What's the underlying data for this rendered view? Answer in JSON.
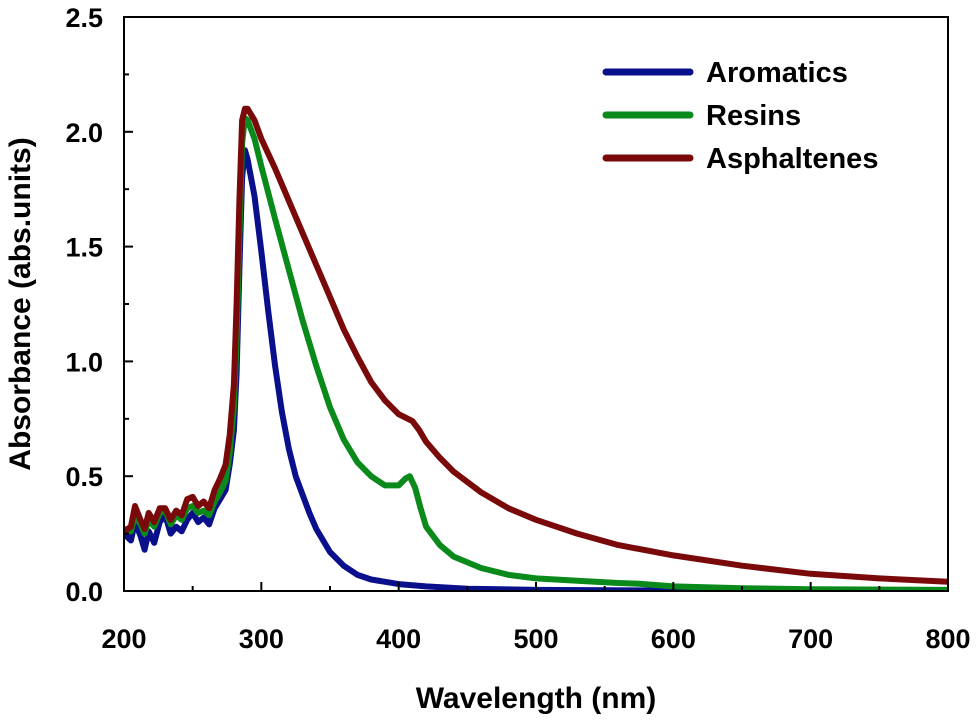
{
  "chart_data": {
    "type": "line",
    "title": "",
    "xlabel": "Wavelength (nm)",
    "ylabel": "Absorbance (abs.units)",
    "xlim": [
      200,
      800
    ],
    "ylim": [
      0.0,
      2.5
    ],
    "xticks": [
      "200",
      "300",
      "400",
      "500",
      "600",
      "700",
      "800"
    ],
    "yticks": [
      "0.0",
      "0.5",
      "1.0",
      "1.5",
      "2.0",
      "2.5"
    ],
    "grid": false,
    "legend_position": "top-right",
    "series": [
      {
        "name": "Aromatics",
        "color": "#0a108c",
        "points": [
          [
            200,
            0.25
          ],
          [
            205,
            0.22
          ],
          [
            208,
            0.3
          ],
          [
            212,
            0.24
          ],
          [
            215,
            0.18
          ],
          [
            218,
            0.26
          ],
          [
            222,
            0.21
          ],
          [
            226,
            0.3
          ],
          [
            230,
            0.33
          ],
          [
            234,
            0.25
          ],
          [
            238,
            0.28
          ],
          [
            242,
            0.26
          ],
          [
            246,
            0.31
          ],
          [
            250,
            0.34
          ],
          [
            254,
            0.3
          ],
          [
            258,
            0.32
          ],
          [
            262,
            0.29
          ],
          [
            266,
            0.36
          ],
          [
            270,
            0.4
          ],
          [
            274,
            0.44
          ],
          [
            277,
            0.55
          ],
          [
            280,
            0.7
          ],
          [
            282,
            0.95
          ],
          [
            284,
            1.4
          ],
          [
            286,
            1.8
          ],
          [
            288,
            1.92
          ],
          [
            290,
            1.88
          ],
          [
            295,
            1.72
          ],
          [
            300,
            1.48
          ],
          [
            305,
            1.22
          ],
          [
            310,
            0.98
          ],
          [
            315,
            0.78
          ],
          [
            320,
            0.62
          ],
          [
            325,
            0.5
          ],
          [
            330,
            0.42
          ],
          [
            335,
            0.34
          ],
          [
            340,
            0.27
          ],
          [
            350,
            0.17
          ],
          [
            360,
            0.11
          ],
          [
            370,
            0.07
          ],
          [
            380,
            0.05
          ],
          [
            400,
            0.03
          ],
          [
            420,
            0.02
          ],
          [
            450,
            0.01
          ],
          [
            500,
            0.005
          ],
          [
            600,
            0.002
          ],
          [
            700,
            0.001
          ],
          [
            800,
            0.001
          ]
        ]
      },
      {
        "name": "Resins",
        "color": "#0a8a1a",
        "points": [
          [
            200,
            0.27
          ],
          [
            205,
            0.26
          ],
          [
            208,
            0.33
          ],
          [
            212,
            0.29
          ],
          [
            215,
            0.25
          ],
          [
            218,
            0.31
          ],
          [
            222,
            0.28
          ],
          [
            226,
            0.34
          ],
          [
            230,
            0.35
          ],
          [
            234,
            0.29
          ],
          [
            238,
            0.33
          ],
          [
            242,
            0.31
          ],
          [
            246,
            0.36
          ],
          [
            250,
            0.37
          ],
          [
            254,
            0.34
          ],
          [
            258,
            0.35
          ],
          [
            262,
            0.33
          ],
          [
            266,
            0.39
          ],
          [
            270,
            0.43
          ],
          [
            274,
            0.48
          ],
          [
            277,
            0.6
          ],
          [
            280,
            0.8
          ],
          [
            282,
            1.1
          ],
          [
            284,
            1.55
          ],
          [
            286,
            1.95
          ],
          [
            288,
            2.06
          ],
          [
            290,
            2.05
          ],
          [
            295,
            1.97
          ],
          [
            300,
            1.85
          ],
          [
            310,
            1.62
          ],
          [
            320,
            1.4
          ],
          [
            330,
            1.18
          ],
          [
            340,
            0.98
          ],
          [
            350,
            0.8
          ],
          [
            360,
            0.66
          ],
          [
            370,
            0.56
          ],
          [
            380,
            0.5
          ],
          [
            390,
            0.46
          ],
          [
            400,
            0.46
          ],
          [
            405,
            0.49
          ],
          [
            408,
            0.5
          ],
          [
            412,
            0.45
          ],
          [
            416,
            0.36
          ],
          [
            420,
            0.28
          ],
          [
            430,
            0.2
          ],
          [
            440,
            0.15
          ],
          [
            460,
            0.1
          ],
          [
            480,
            0.07
          ],
          [
            500,
            0.055
          ],
          [
            530,
            0.045
          ],
          [
            560,
            0.035
          ],
          [
            575,
            0.032
          ],
          [
            600,
            0.02
          ],
          [
            650,
            0.012
          ],
          [
            700,
            0.008
          ],
          [
            800,
            0.005
          ]
        ]
      },
      {
        "name": "Asphaltenes",
        "color": "#7a0a0a",
        "points": [
          [
            200,
            0.26
          ],
          [
            205,
            0.28
          ],
          [
            208,
            0.37
          ],
          [
            212,
            0.31
          ],
          [
            215,
            0.27
          ],
          [
            218,
            0.34
          ],
          [
            222,
            0.3
          ],
          [
            226,
            0.36
          ],
          [
            230,
            0.36
          ],
          [
            234,
            0.31
          ],
          [
            238,
            0.35
          ],
          [
            242,
            0.33
          ],
          [
            246,
            0.4
          ],
          [
            250,
            0.41
          ],
          [
            254,
            0.37
          ],
          [
            258,
            0.39
          ],
          [
            262,
            0.36
          ],
          [
            266,
            0.44
          ],
          [
            270,
            0.49
          ],
          [
            274,
            0.55
          ],
          [
            277,
            0.68
          ],
          [
            280,
            0.9
          ],
          [
            282,
            1.25
          ],
          [
            284,
            1.7
          ],
          [
            286,
            2.05
          ],
          [
            288,
            2.1
          ],
          [
            290,
            2.1
          ],
          [
            295,
            2.05
          ],
          [
            300,
            1.97
          ],
          [
            310,
            1.84
          ],
          [
            320,
            1.7
          ],
          [
            330,
            1.56
          ],
          [
            340,
            1.42
          ],
          [
            350,
            1.28
          ],
          [
            360,
            1.14
          ],
          [
            370,
            1.02
          ],
          [
            380,
            0.91
          ],
          [
            390,
            0.83
          ],
          [
            400,
            0.77
          ],
          [
            410,
            0.74
          ],
          [
            415,
            0.7
          ],
          [
            420,
            0.65
          ],
          [
            430,
            0.58
          ],
          [
            440,
            0.52
          ],
          [
            460,
            0.43
          ],
          [
            480,
            0.36
          ],
          [
            500,
            0.31
          ],
          [
            530,
            0.25
          ],
          [
            560,
            0.2
          ],
          [
            600,
            0.155
          ],
          [
            650,
            0.11
          ],
          [
            700,
            0.075
          ],
          [
            750,
            0.055
          ],
          [
            800,
            0.04
          ]
        ]
      }
    ]
  }
}
